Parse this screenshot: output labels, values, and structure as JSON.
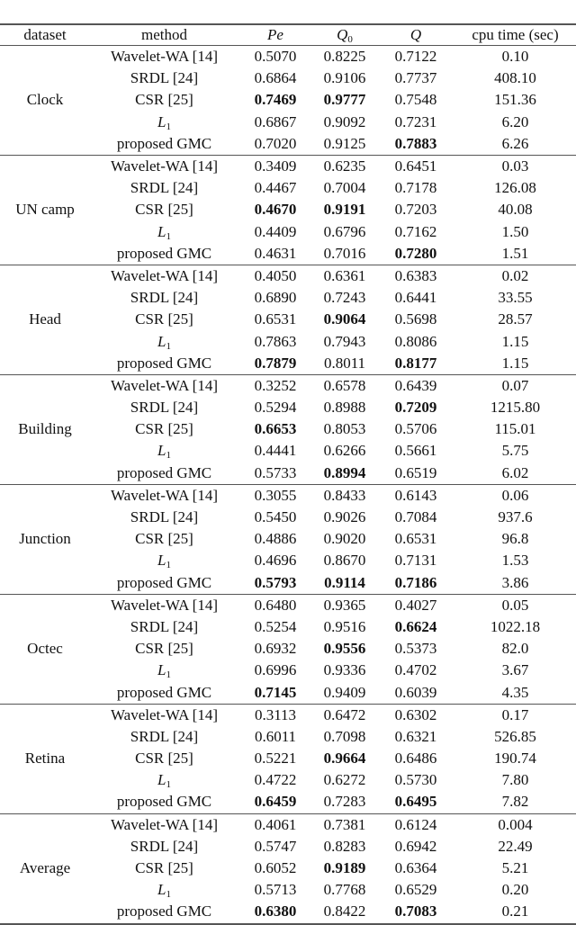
{
  "table": {
    "headers": {
      "dataset": "dataset",
      "method": "method",
      "pe": "Pe",
      "q0_main": "Q",
      "q0_sub": "0",
      "q": "Q",
      "cpu": "cpu time (sec)"
    },
    "groups": [
      {
        "dataset": "Clock",
        "rows": [
          {
            "method": "Wavelet-WA [14]",
            "pe": "0.5070",
            "q0": "0.8225",
            "q": "0.7122",
            "cpu": "0.10",
            "bold": []
          },
          {
            "method": "SRDL [24]",
            "pe": "0.6864",
            "q0": "0.9106",
            "q": "0.7737",
            "cpu": "408.10",
            "bold": []
          },
          {
            "method": "CSR [25]",
            "pe": "0.7469",
            "q0": "0.9777",
            "q": "0.7548",
            "cpu": "151.36",
            "bold": [
              "pe",
              "q0"
            ]
          },
          {
            "method": "L",
            "method_sub": "1",
            "pe": "0.6867",
            "q0": "0.9092",
            "q": "0.7231",
            "cpu": "6.20",
            "bold": []
          },
          {
            "method": "proposed GMC",
            "pe": "0.7020",
            "q0": "0.9125",
            "q": "0.7883",
            "cpu": "6.26",
            "bold": [
              "q"
            ]
          }
        ]
      },
      {
        "dataset": "UN camp",
        "rows": [
          {
            "method": "Wavelet-WA [14]",
            "pe": "0.3409",
            "q0": "0.6235",
            "q": "0.6451",
            "cpu": "0.03",
            "bold": []
          },
          {
            "method": "SRDL [24]",
            "pe": "0.4467",
            "q0": "0.7004",
            "q": "0.7178",
            "cpu": "126.08",
            "bold": []
          },
          {
            "method": "CSR [25]",
            "pe": "0.4670",
            "q0": "0.9191",
            "q": "0.7203",
            "cpu": "40.08",
            "bold": [
              "pe",
              "q0"
            ]
          },
          {
            "method": "L",
            "method_sub": "1",
            "pe": "0.4409",
            "q0": "0.6796",
            "q": "0.7162",
            "cpu": "1.50",
            "bold": []
          },
          {
            "method": "proposed GMC",
            "pe": "0.4631",
            "q0": "0.7016",
            "q": "0.7280",
            "cpu": "1.51",
            "bold": [
              "q"
            ]
          }
        ]
      },
      {
        "dataset": "Head",
        "rows": [
          {
            "method": "Wavelet-WA [14]",
            "pe": "0.4050",
            "q0": "0.6361",
            "q": "0.6383",
            "cpu": "0.02",
            "bold": []
          },
          {
            "method": "SRDL [24]",
            "pe": "0.6890",
            "q0": "0.7243",
            "q": "0.6441",
            "cpu": "33.55",
            "bold": []
          },
          {
            "method": "CSR [25]",
            "pe": "0.6531",
            "q0": "0.9064",
            "q": "0.5698",
            "cpu": "28.57",
            "bold": [
              "q0"
            ]
          },
          {
            "method": "L",
            "method_sub": "1",
            "pe": "0.7863",
            "q0": "0.7943",
            "q": "0.8086",
            "cpu": "1.15",
            "bold": []
          },
          {
            "method": "proposed GMC",
            "pe": "0.7879",
            "q0": "0.8011",
            "q": "0.8177",
            "cpu": "1.15",
            "bold": [
              "pe",
              "q"
            ]
          }
        ]
      },
      {
        "dataset": "Building",
        "rows": [
          {
            "method": "Wavelet-WA [14]",
            "pe": "0.3252",
            "q0": "0.6578",
            "q": "0.6439",
            "cpu": "0.07",
            "bold": []
          },
          {
            "method": "SRDL [24]",
            "pe": "0.5294",
            "q0": "0.8988",
            "q": "0.7209",
            "cpu": "1215.80",
            "bold": [
              "q"
            ]
          },
          {
            "method": "CSR [25]",
            "pe": "0.6653",
            "q0": "0.8053",
            "q": "0.5706",
            "cpu": "115.01",
            "bold": [
              "pe"
            ]
          },
          {
            "method": "L",
            "method_sub": "1",
            "pe": "0.4441",
            "q0": "0.6266",
            "q": "0.5661",
            "cpu": "5.75",
            "bold": []
          },
          {
            "method": "proposed GMC",
            "pe": "0.5733",
            "q0": "0.8994",
            "q": "0.6519",
            "cpu": "6.02",
            "bold": [
              "q0"
            ]
          }
        ]
      },
      {
        "dataset": "Junction",
        "rows": [
          {
            "method": "Wavelet-WA [14]",
            "pe": "0.3055",
            "q0": "0.8433",
            "q": "0.6143",
            "cpu": "0.06",
            "bold": []
          },
          {
            "method": "SRDL [24]",
            "pe": "0.5450",
            "q0": "0.9026",
            "q": "0.7084",
            "cpu": "937.6",
            "bold": []
          },
          {
            "method": "CSR [25]",
            "pe": "0.4886",
            "q0": "0.9020",
            "q": "0.6531",
            "cpu": "96.8",
            "bold": []
          },
          {
            "method": "L",
            "method_sub": "1",
            "pe": "0.4696",
            "q0": "0.8670",
            "q": "0.7131",
            "cpu": "1.53",
            "bold": []
          },
          {
            "method": "proposed GMC",
            "pe": "0.5793",
            "q0": "0.9114",
            "q": "0.7186",
            "cpu": "3.86",
            "bold": [
              "pe",
              "q0",
              "q"
            ]
          }
        ]
      },
      {
        "dataset": "Octec",
        "rows": [
          {
            "method": "Wavelet-WA [14]",
            "pe": "0.6480",
            "q0": "0.9365",
            "q": "0.4027",
            "cpu": "0.05",
            "bold": []
          },
          {
            "method": "SRDL [24]",
            "pe": "0.5254",
            "q0": "0.9516",
            "q": "0.6624",
            "cpu": "1022.18",
            "bold": [
              "q"
            ]
          },
          {
            "method": "CSR [25]",
            "pe": "0.6932",
            "q0": "0.9556",
            "q": "0.5373",
            "cpu": "82.0",
            "bold": [
              "q0"
            ]
          },
          {
            "method": "L",
            "method_sub": "1",
            "pe": "0.6996",
            "q0": "0.9336",
            "q": "0.4702",
            "cpu": "3.67",
            "bold": []
          },
          {
            "method": "proposed GMC",
            "pe": "0.7145",
            "q0": "0.9409",
            "q": "0.6039",
            "cpu": "4.35",
            "bold": [
              "pe"
            ]
          }
        ]
      },
      {
        "dataset": "Retina",
        "rows": [
          {
            "method": "Wavelet-WA [14]",
            "pe": "0.3113",
            "q0": "0.6472",
            "q": "0.6302",
            "cpu": "0.17",
            "bold": []
          },
          {
            "method": "SRDL [24]",
            "pe": "0.6011",
            "q0": "0.7098",
            "q": "0.6321",
            "cpu": "526.85",
            "bold": []
          },
          {
            "method": "CSR [25]",
            "pe": "0.5221",
            "q0": "0.9664",
            "q": "0.6486",
            "cpu": "190.74",
            "bold": [
              "q0"
            ]
          },
          {
            "method": "L",
            "method_sub": "1",
            "pe": "0.4722",
            "q0": "0.6272",
            "q": "0.5730",
            "cpu": "7.80",
            "bold": []
          },
          {
            "method": "proposed GMC",
            "pe": "0.6459",
            "q0": "0.7283",
            "q": "0.6495",
            "cpu": "7.82",
            "bold": [
              "pe",
              "q"
            ]
          }
        ]
      },
      {
        "dataset": "Average",
        "rows": [
          {
            "method": "Wavelet-WA [14]",
            "pe": "0.4061",
            "q0": "0.7381",
            "q": "0.6124",
            "cpu": "0.004",
            "bold": []
          },
          {
            "method": "SRDL [24]",
            "pe": "0.5747",
            "q0": "0.8283",
            "q": "0.6942",
            "cpu": "22.49",
            "bold": []
          },
          {
            "method": "CSR [25]",
            "pe": "0.6052",
            "q0": "0.9189",
            "q": "0.6364",
            "cpu": "5.21",
            "bold": [
              "q0"
            ]
          },
          {
            "method": "L",
            "method_sub": "1",
            "pe": "0.5713",
            "q0": "0.7768",
            "q": "0.6529",
            "cpu": "0.20",
            "bold": []
          },
          {
            "method": "proposed GMC",
            "pe": "0.6380",
            "q0": "0.8422",
            "q": "0.7083",
            "cpu": "0.21",
            "bold": [
              "pe",
              "q"
            ]
          }
        ]
      }
    ]
  }
}
